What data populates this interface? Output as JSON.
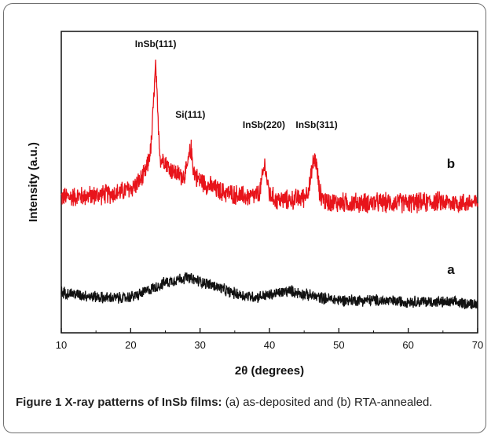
{
  "chart_data": {
    "type": "line",
    "xlabel": "2θ (degrees)",
    "ylabel": "Intensity (a.u.)",
    "xlim": [
      10,
      70
    ],
    "x_ticks": [
      "10",
      "20",
      "30",
      "40",
      "50",
      "60",
      "70"
    ],
    "y_ticks_shown": false,
    "grid": false,
    "series": [
      {
        "name": "b",
        "color": "#e8141b",
        "offset": 1.0,
        "x": [
          10,
          14,
          18,
          20,
          21,
          22,
          22.5,
          23,
          23.3,
          23.6,
          23.9,
          24.3,
          24.8,
          25.5,
          26.5,
          27.5,
          28,
          28.4,
          28.7,
          29,
          29.5,
          31,
          33,
          35,
          37,
          38.5,
          39,
          39.3,
          39.6,
          40,
          41,
          43,
          45,
          45.8,
          46.2,
          46.5,
          46.8,
          47.2,
          48,
          50,
          52,
          55,
          58,
          60,
          62,
          64,
          66,
          68,
          70
        ],
        "y": [
          0.06,
          0.07,
          0.09,
          0.12,
          0.16,
          0.22,
          0.3,
          0.45,
          0.75,
          1.0,
          0.65,
          0.32,
          0.34,
          0.27,
          0.23,
          0.21,
          0.24,
          0.34,
          0.42,
          0.27,
          0.2,
          0.15,
          0.1,
          0.08,
          0.06,
          0.08,
          0.2,
          0.3,
          0.2,
          0.08,
          0.04,
          0.04,
          0.06,
          0.14,
          0.28,
          0.35,
          0.28,
          0.1,
          0.03,
          0.02,
          0.02,
          0.02,
          0.02,
          0.02,
          0.02,
          0.03,
          0.02,
          0.02,
          0.02
        ],
        "noise": 0.07
      },
      {
        "name": "a",
        "color": "#111111",
        "offset": 0.0,
        "x": [
          10,
          13,
          16,
          19,
          21,
          23,
          25,
          27,
          28,
          29,
          30,
          32,
          34,
          36,
          38,
          40,
          42,
          43,
          44,
          46,
          48,
          50,
          52,
          55,
          58,
          61,
          64,
          67,
          70
        ],
        "y": [
          0.25,
          0.2,
          0.16,
          0.15,
          0.2,
          0.3,
          0.4,
          0.46,
          0.48,
          0.45,
          0.42,
          0.35,
          0.26,
          0.2,
          0.17,
          0.2,
          0.25,
          0.27,
          0.24,
          0.19,
          0.15,
          0.12,
          0.12,
          0.12,
          0.1,
          0.1,
          0.09,
          0.08,
          0.06
        ],
        "noise": 0.09
      }
    ],
    "annotations": [
      {
        "text": "InSb(111)",
        "x": 23.6
      },
      {
        "text": "Si(111)",
        "x": 28.6
      },
      {
        "text": "InSb(220)",
        "x": 39.2
      },
      {
        "text": "InSb(311)",
        "x": 46.8
      }
    ],
    "series_labels": [
      {
        "text": "b",
        "series": "b"
      },
      {
        "text": "a",
        "series": "a"
      }
    ]
  },
  "caption": {
    "label": "Figure 1 X-ray patterns of InSb films:",
    "text": " (a) as-deposited and (b) RTA-annealed."
  }
}
